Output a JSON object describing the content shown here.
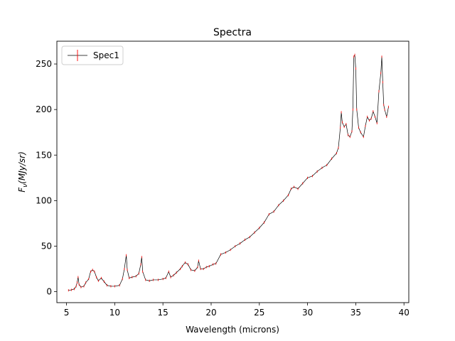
{
  "chart_data": {
    "type": "line",
    "title": "Spectra",
    "xlabel": "Wavelength (microns)",
    "ylabel": "F_ν(MJy/sr)",
    "xlim": [
      4.0,
      40.5
    ],
    "ylim": [
      -12,
      275
    ],
    "xticks": [
      5,
      10,
      15,
      20,
      25,
      30,
      35,
      40
    ],
    "yticks": [
      0,
      50,
      100,
      150,
      200,
      250
    ],
    "legend_position": "upper-left",
    "grid": false,
    "series": [
      {
        "name": "Spec1",
        "line_color": "#000000",
        "errorbar_color": "#ff0000",
        "x": [
          5.2,
          5.5,
          5.8,
          6.0,
          6.1,
          6.2,
          6.3,
          6.5,
          6.8,
          7.0,
          7.3,
          7.5,
          7.7,
          7.9,
          8.1,
          8.3,
          8.6,
          8.9,
          9.2,
          9.6,
          10.0,
          10.5,
          10.8,
          11.0,
          11.2,
          11.3,
          11.5,
          11.8,
          12.2,
          12.5,
          12.7,
          12.8,
          12.9,
          13.2,
          13.6,
          14.0,
          14.5,
          15.0,
          15.3,
          15.6,
          15.8,
          16.1,
          16.4,
          16.8,
          17.0,
          17.3,
          17.6,
          17.9,
          18.3,
          18.6,
          18.7,
          18.9,
          19.2,
          19.5,
          19.8,
          20.2,
          20.5,
          21.0,
          21.5,
          22.0,
          22.5,
          23.0,
          23.5,
          24.0,
          24.5,
          25.0,
          25.5,
          26.0,
          26.5,
          27.0,
          27.5,
          28.0,
          28.3,
          28.6,
          29.0,
          29.5,
          30.0,
          30.5,
          31.0,
          31.5,
          32.0,
          32.5,
          33.0,
          33.2,
          33.4,
          33.5,
          33.6,
          33.8,
          34.0,
          34.2,
          34.4,
          34.6,
          34.7,
          34.8,
          34.9,
          35.0,
          35.1,
          35.3,
          35.5,
          35.8,
          36.0,
          36.2,
          36.4,
          36.6,
          36.8,
          37.0,
          37.2,
          37.4,
          37.6,
          37.7,
          37.8,
          37.9,
          38.0,
          38.2,
          38.4
        ],
        "y": [
          1.5,
          2.0,
          3.0,
          6.0,
          10.0,
          16.0,
          8.0,
          5.0,
          6.0,
          10.0,
          14.0,
          22.0,
          24.0,
          22.0,
          16.0,
          12.0,
          15.0,
          11.0,
          7.0,
          6.0,
          6.0,
          7.0,
          14.0,
          25.0,
          40.0,
          24.0,
          15.0,
          16.0,
          17.0,
          20.0,
          30.0,
          38.0,
          22.0,
          13.0,
          12.0,
          13.0,
          13.0,
          14.0,
          15.0,
          22.0,
          16.0,
          18.0,
          21.0,
          25.0,
          28.0,
          32.0,
          30.0,
          24.0,
          23.0,
          27.0,
          34.0,
          25.0,
          25.0,
          27.0,
          28.0,
          30.0,
          31.0,
          41.0,
          43.0,
          46.0,
          50.0,
          53.0,
          57.0,
          60.0,
          65.0,
          70.0,
          76.0,
          85.0,
          88.0,
          95.0,
          100.0,
          106.0,
          113.0,
          115.0,
          113.0,
          119.0,
          125.0,
          127.0,
          132.0,
          136.0,
          139.0,
          146.0,
          152.0,
          158.0,
          180.0,
          197.0,
          186.0,
          181.0,
          184.0,
          172.0,
          170.0,
          176.0,
          200.0,
          258.0,
          260.0,
          245.0,
          200.0,
          180.0,
          175.0,
          170.0,
          182.0,
          192.0,
          188.0,
          190.0,
          198.0,
          192.0,
          185.0,
          220.0,
          240.0,
          258.0,
          230.0,
          205.0,
          200.0,
          192.0,
          203.0
        ]
      }
    ]
  }
}
